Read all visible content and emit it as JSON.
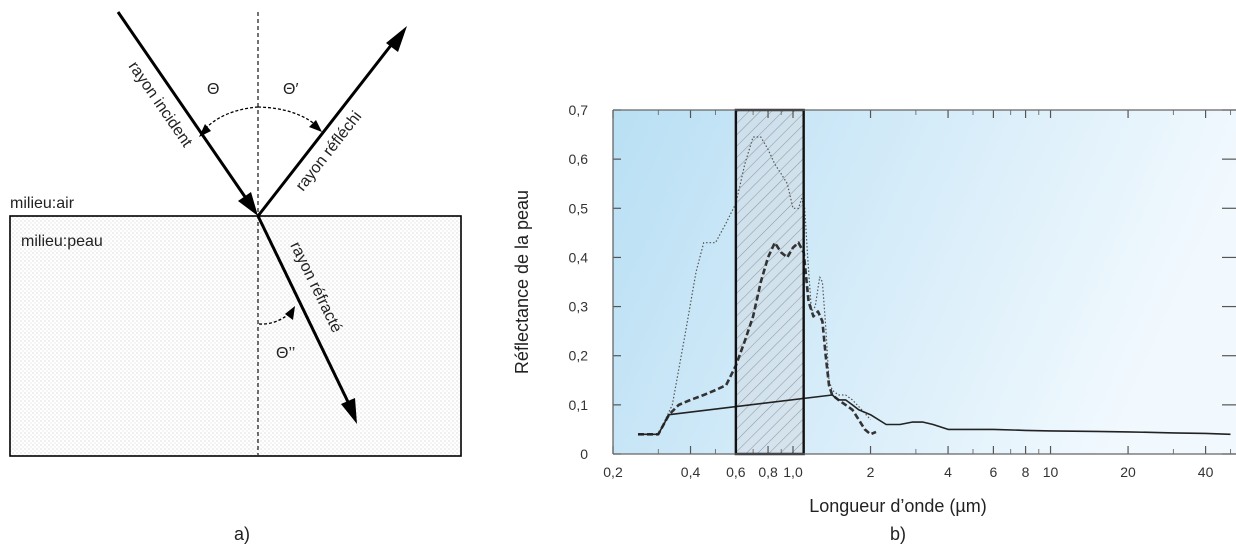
{
  "diagram": {
    "medium_top": "milieu:air",
    "medium_bottom": "milieu:peau",
    "ray_incident": "rayon incident",
    "ray_reflected": "rayon réfléchi",
    "ray_refracted": "rayon réfracté",
    "angle_incident": "Θ",
    "angle_reflected": "Θ′",
    "angle_refracted": "Θ’’",
    "caption": "a)"
  },
  "chart_data": {
    "type": "line",
    "caption": "b)",
    "xlabel": "Longueur d’onde (µm)",
    "ylabel": "Réflectance de la peau",
    "x_scale": "log",
    "xlim": [
      0.2,
      50
    ],
    "ylim": [
      0,
      0.7
    ],
    "x_ticks": [
      {
        "v": 0.2,
        "label": "0,2"
      },
      {
        "v": 0.4,
        "label": "0,4"
      },
      {
        "v": 0.6,
        "label": "0,6"
      },
      {
        "v": 0.8,
        "label": "0,8"
      },
      {
        "v": 1.0,
        "label": "1,0"
      },
      {
        "v": 2,
        "label": "2"
      },
      {
        "v": 4,
        "label": "4"
      },
      {
        "v": 6,
        "label": "6"
      },
      {
        "v": 8,
        "label": "8"
      },
      {
        "v": 10,
        "label": "10"
      },
      {
        "v": 20,
        "label": "20"
      },
      {
        "v": 40,
        "label": "40"
      }
    ],
    "y_ticks": [
      {
        "v": 0,
        "label": "0"
      },
      {
        "v": 0.1,
        "label": "0,1"
      },
      {
        "v": 0.2,
        "label": "0,2"
      },
      {
        "v": 0.3,
        "label": "0,3"
      },
      {
        "v": 0.4,
        "label": "0,4"
      },
      {
        "v": 0.5,
        "label": "0,5"
      },
      {
        "v": 0.6,
        "label": "0,6"
      },
      {
        "v": 0.7,
        "label": "0,7"
      }
    ],
    "highlight_band": [
      0.6,
      1.1
    ],
    "background_gradient": [
      "#b9dff4",
      "#f2f9fe"
    ],
    "series": [
      {
        "style": "dotted",
        "x": [
          0.25,
          0.3,
          0.34,
          0.38,
          0.42,
          0.45,
          0.5,
          0.55,
          0.6,
          0.65,
          0.7,
          0.75,
          0.8,
          0.85,
          0.9,
          0.95,
          1.0,
          1.05,
          1.08,
          1.11,
          1.14,
          1.18,
          1.22,
          1.27,
          1.3,
          1.34,
          1.38,
          1.42,
          1.5,
          1.6,
          1.7,
          1.85,
          2.0
        ],
        "y": [
          0.04,
          0.04,
          0.1,
          0.24,
          0.37,
          0.43,
          0.43,
          0.47,
          0.51,
          0.59,
          0.645,
          0.645,
          0.62,
          0.59,
          0.57,
          0.55,
          0.5,
          0.5,
          0.52,
          0.5,
          0.4,
          0.29,
          0.3,
          0.36,
          0.35,
          0.26,
          0.15,
          0.13,
          0.12,
          0.12,
          0.11,
          0.09,
          0.07
        ]
      },
      {
        "style": "dashed",
        "x": [
          0.25,
          0.3,
          0.33,
          0.36,
          0.4,
          0.45,
          0.5,
          0.55,
          0.6,
          0.65,
          0.7,
          0.75,
          0.8,
          0.85,
          0.9,
          0.95,
          1.0,
          1.05,
          1.1,
          1.15,
          1.2,
          1.25,
          1.3,
          1.34,
          1.38,
          1.42,
          1.5,
          1.6,
          1.7,
          1.8,
          1.9,
          2.0,
          2.1
        ],
        "y": [
          0.04,
          0.04,
          0.08,
          0.1,
          0.11,
          0.12,
          0.13,
          0.14,
          0.18,
          0.23,
          0.28,
          0.35,
          0.4,
          0.43,
          0.41,
          0.4,
          0.42,
          0.43,
          0.41,
          0.31,
          0.28,
          0.29,
          0.27,
          0.2,
          0.14,
          0.12,
          0.11,
          0.1,
          0.09,
          0.07,
          0.05,
          0.04,
          0.045
        ]
      },
      {
        "style": "solid",
        "x": [
          0.25,
          0.3,
          0.33,
          1.42,
          1.5,
          1.6,
          1.7,
          1.8,
          2.0,
          2.3,
          2.6,
          2.9,
          3.2,
          3.5,
          4.0,
          5.0,
          6.0,
          8.0,
          10.0,
          15.0,
          20.0,
          30.0,
          40.0,
          50.0
        ],
        "y": [
          0.04,
          0.04,
          0.08,
          0.12,
          0.11,
          0.11,
          0.1,
          0.09,
          0.08,
          0.06,
          0.06,
          0.065,
          0.065,
          0.06,
          0.05,
          0.05,
          0.05,
          0.048,
          0.047,
          0.046,
          0.045,
          0.043,
          0.042,
          0.04
        ]
      }
    ]
  }
}
